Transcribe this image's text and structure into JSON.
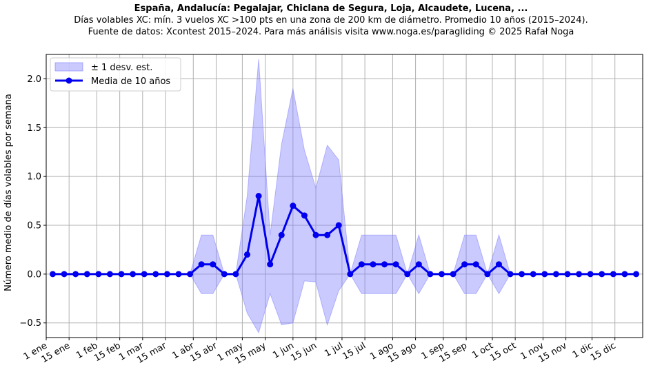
{
  "chart_data": {
    "type": "line",
    "title": "España, Andalucía: Pegalajar, Chiclana de Segura, Loja, Alcaudete, Lucena, ...",
    "subtitle_lines": [
      "Días volables XC: mín. 3 vuelos XC >100 pts en una zona de 200 km de diámetro. Promedio 10 años (2015–2024).",
      "Fuente de datos: Xcontest 2015–2024. Para más análisis visita www.noga.es/paragliding © 2025 Rafał Noga"
    ],
    "xlabel": "",
    "ylabel": "Número medio de días volables por semana",
    "x_unit": "day of year",
    "xlim": [
      1,
      366
    ],
    "ylim": [
      -0.65,
      2.25
    ],
    "grid": true,
    "legend_position": "top-left",
    "x_ticks": [
      {
        "day": 1,
        "label": "1 ene"
      },
      {
        "day": 15,
        "label": "15 ene"
      },
      {
        "day": 32,
        "label": "1 feb"
      },
      {
        "day": 46,
        "label": "15 feb"
      },
      {
        "day": 60,
        "label": "1 mar"
      },
      {
        "day": 74,
        "label": "15 mar"
      },
      {
        "day": 91,
        "label": "1 abr"
      },
      {
        "day": 105,
        "label": "15 abr"
      },
      {
        "day": 121,
        "label": "1 may"
      },
      {
        "day": 135,
        "label": "15 may"
      },
      {
        "day": 152,
        "label": "1 jun"
      },
      {
        "day": 166,
        "label": "15 jun"
      },
      {
        "day": 182,
        "label": "1 jul"
      },
      {
        "day": 196,
        "label": "15 jul"
      },
      {
        "day": 213,
        "label": "1 ago"
      },
      {
        "day": 227,
        "label": "15 ago"
      },
      {
        "day": 244,
        "label": "1 sep"
      },
      {
        "day": 258,
        "label": "15 sep"
      },
      {
        "day": 274,
        "label": "1 oct"
      },
      {
        "day": 288,
        "label": "15 oct"
      },
      {
        "day": 305,
        "label": "1 nov"
      },
      {
        "day": 319,
        "label": "15 nov"
      },
      {
        "day": 335,
        "label": "1 dic"
      },
      {
        "day": 349,
        "label": "15 dic"
      }
    ],
    "y_ticks": [
      -0.5,
      0.0,
      0.5,
      1.0,
      1.5,
      2.0
    ],
    "y_tick_labels": [
      "−0.5",
      "0.0",
      "0.5",
      "1.0",
      "1.5",
      "2.0"
    ],
    "x": [
      5,
      12,
      19,
      26,
      33,
      40,
      47,
      54,
      61,
      68,
      75,
      82,
      89,
      96,
      103,
      110,
      117,
      124,
      131,
      138,
      145,
      152,
      159,
      166,
      173,
      180,
      187,
      194,
      201,
      208,
      215,
      222,
      229,
      236,
      243,
      250,
      257,
      264,
      271,
      278,
      285,
      292,
      299,
      306,
      313,
      320,
      327,
      334,
      341,
      348,
      355,
      362
    ],
    "series": [
      {
        "name": "Media de 10 años",
        "color": "#0000ee",
        "values": [
          0,
          0,
          0,
          0,
          0,
          0,
          0,
          0,
          0,
          0,
          0,
          0,
          0,
          0.1,
          0.1,
          0,
          0,
          0.2,
          0.8,
          0.1,
          0.4,
          0.7,
          0.6,
          0.4,
          0.4,
          0.5,
          0,
          0.1,
          0.1,
          0.1,
          0.1,
          0,
          0.1,
          0,
          0,
          0,
          0.1,
          0.1,
          0,
          0.1,
          0,
          0,
          0,
          0,
          0,
          0,
          0,
          0,
          0,
          0,
          0,
          0
        ]
      },
      {
        "name": "± 1 desv. est.",
        "color": "#7b7bff",
        "type": "band",
        "upper": [
          0,
          0,
          0,
          0,
          0,
          0,
          0,
          0,
          0,
          0,
          0,
          0,
          0,
          0.4,
          0.4,
          0,
          0,
          0.8,
          2.2,
          0.4,
          1.33,
          1.9,
          1.27,
          0.88,
          1.32,
          1.17,
          0,
          0.4,
          0.4,
          0.4,
          0.4,
          0,
          0.4,
          0,
          0,
          0,
          0.4,
          0.4,
          0,
          0.4,
          0,
          0,
          0,
          0,
          0,
          0,
          0,
          0,
          0,
          0,
          0,
          0
        ],
        "lower": [
          0,
          0,
          0,
          0,
          0,
          0,
          0,
          0,
          0,
          0,
          0,
          0,
          0,
          -0.2,
          -0.2,
          0,
          0,
          -0.4,
          -0.6,
          -0.2,
          -0.52,
          -0.5,
          -0.07,
          -0.08,
          -0.52,
          -0.17,
          0,
          -0.2,
          -0.2,
          -0.2,
          -0.2,
          0,
          -0.2,
          0,
          0,
          0,
          -0.2,
          -0.2,
          0,
          -0.2,
          0,
          0,
          0,
          0,
          0,
          0,
          0,
          0,
          0,
          0,
          0,
          0
        ]
      }
    ],
    "legend": [
      {
        "label": "± 1 desv. est.",
        "kind": "band"
      },
      {
        "label": "Media de 10 años",
        "kind": "line"
      }
    ]
  }
}
